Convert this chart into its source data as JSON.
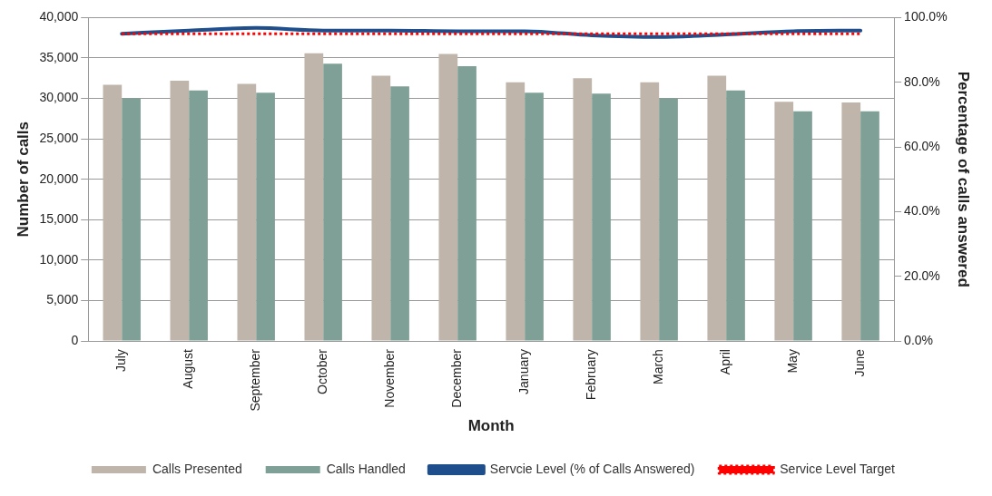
{
  "chart_data": {
    "type": "bar",
    "xlabel": "Month",
    "ylabel": "Number of calls",
    "y2label": "Percentage of calls answered",
    "categories": [
      "July",
      "August",
      "September",
      "October",
      "November",
      "December",
      "January",
      "February",
      "March",
      "April",
      "May",
      "June"
    ],
    "series": [
      {
        "name": "Calls Presented",
        "color": "#c0b5ab",
        "values": [
          31700,
          32200,
          31800,
          35600,
          32800,
          35500,
          32000,
          32500,
          32000,
          32800,
          29600,
          29500
        ]
      },
      {
        "name": "Calls Handled",
        "color": "#7fa096",
        "values": [
          30000,
          31000,
          30700,
          34300,
          31500,
          34000,
          30700,
          30600,
          30000,
          31000,
          28400,
          28400
        ]
      },
      {
        "name": "Servcie Level (% of Calls Answered)",
        "type": "line",
        "axis": "y2",
        "color": "#1f4e8c",
        "line_style": "solid",
        "values": [
          95.0,
          96.0,
          96.8,
          96.0,
          96.0,
          95.8,
          95.8,
          94.5,
          94.0,
          94.8,
          95.8,
          96.0
        ]
      },
      {
        "name": "Service Level Target",
        "type": "line",
        "axis": "y2",
        "color": "#ff0000",
        "line_style": "dotted",
        "values": [
          95,
          95,
          95,
          95,
          95,
          95,
          95,
          95,
          95,
          95,
          95,
          95
        ]
      }
    ],
    "ylim": [
      0,
      40000
    ],
    "yticks": [
      {
        "value": 0,
        "label": "0"
      },
      {
        "value": 5000,
        "label": "5,000"
      },
      {
        "value": 10000,
        "label": "10,000"
      },
      {
        "value": 15000,
        "label": "15,000"
      },
      {
        "value": 20000,
        "label": "20,000"
      },
      {
        "value": 25000,
        "label": "25,000"
      },
      {
        "value": 30000,
        "label": "30,000"
      },
      {
        "value": 35000,
        "label": "35,000"
      },
      {
        "value": 40000,
        "label": "40,000"
      }
    ],
    "y2lim": [
      0,
      100
    ],
    "y2ticks": [
      {
        "value": 0,
        "label": "0.0%"
      },
      {
        "value": 20,
        "label": "20.0%"
      },
      {
        "value": 40,
        "label": "40.0%"
      },
      {
        "value": 60,
        "label": "60.0%"
      },
      {
        "value": 80,
        "label": "80.0%"
      },
      {
        "value": 100,
        "label": "100.0%"
      }
    ],
    "grid": "y",
    "legend": "bottom",
    "marker": "none"
  }
}
